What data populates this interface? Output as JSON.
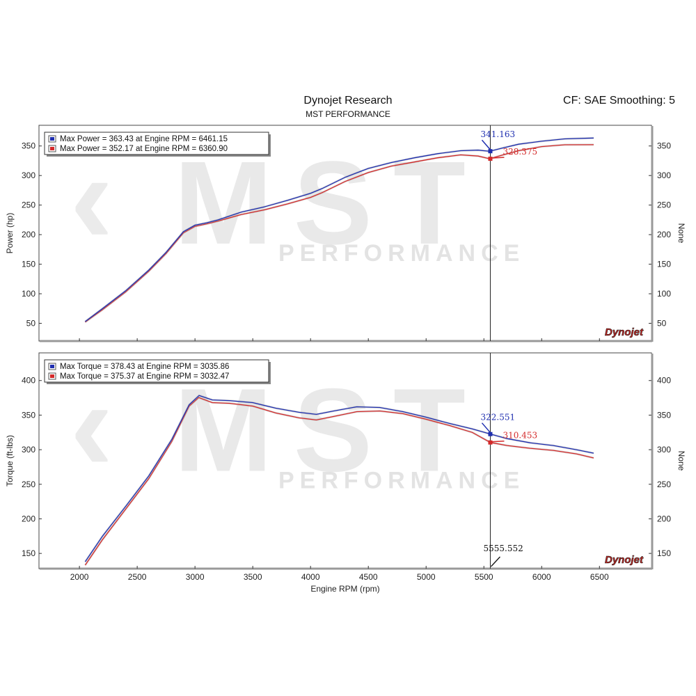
{
  "header": {
    "title": "Dynojet Research",
    "subtitle": "MST PERFORMANCE",
    "cf": "CF: SAE Smoothing: 5"
  },
  "watermark": {
    "brand": "MST",
    "tag": "PERFORMANCE",
    "logo": "Dynojet"
  },
  "colors": {
    "blue": "#1f2fb0",
    "red": "#d42a2a"
  },
  "cursor": {
    "rpm_label": "5555.552",
    "rpm": 5555.552
  },
  "chart_data": [
    {
      "type": "line",
      "ylabel": "Power (hp)",
      "ylabel_right": "None",
      "xlim": [
        1650,
        6950
      ],
      "ylim": [
        20,
        385
      ],
      "yticks": [
        50,
        100,
        150,
        200,
        250,
        300,
        350
      ],
      "yticklabels": [
        "50",
        "100",
        "150",
        "200",
        "250",
        "300",
        "350"
      ],
      "legend": [
        "Max Power = 363.43 at Engine RPM = 6461.15",
        "Max Power = 352.17 at Engine RPM = 6360.90"
      ],
      "cursor_values": [
        "341.163",
        "328.375"
      ],
      "cursor_y": [
        341.163,
        328.375
      ],
      "series": [
        {
          "color": "#1f2fb0",
          "x": [
            2050,
            2200,
            2400,
            2600,
            2750,
            2900,
            3000,
            3100,
            3200,
            3400,
            3600,
            3800,
            4000,
            4100,
            4300,
            4500,
            4700,
            4900,
            5100,
            5300,
            5450,
            5550,
            5650,
            5800,
            6000,
            6200,
            6450
          ],
          "y": [
            53,
            75,
            105,
            140,
            170,
            205,
            216,
            220,
            225,
            238,
            247,
            258,
            270,
            278,
            297,
            312,
            322,
            330,
            337,
            342,
            343,
            341,
            346,
            353,
            358,
            362,
            363.4
          ]
        },
        {
          "color": "#d42a2a",
          "x": [
            2050,
            2200,
            2400,
            2600,
            2750,
            2900,
            3000,
            3100,
            3200,
            3400,
            3600,
            3800,
            4000,
            4100,
            4300,
            4500,
            4700,
            4900,
            5100,
            5300,
            5450,
            5550,
            5650,
            5800,
            6000,
            6200,
            6450
          ],
          "y": [
            52,
            73,
            103,
            138,
            168,
            203,
            214,
            218,
            223,
            234,
            242,
            252,
            263,
            271,
            290,
            305,
            316,
            323,
            330,
            335,
            333,
            328.4,
            334,
            342,
            349,
            352,
            352.2
          ]
        }
      ]
    },
    {
      "type": "line",
      "ylabel": "Torque (ft-lbs)",
      "ylabel_right": "None",
      "xlabel": "Engine RPM (rpm)",
      "xlim": [
        1650,
        6950
      ],
      "ylim": [
        128,
        440
      ],
      "xticks": [
        2000,
        2500,
        3000,
        3500,
        4000,
        4500,
        5000,
        5500,
        6000,
        6500
      ],
      "xticklabels": [
        "2000",
        "2500",
        "3000",
        "3500",
        "4000",
        "4500",
        "5000",
        "5500",
        "6000",
        "6500"
      ],
      "yticks": [
        150,
        200,
        250,
        300,
        350,
        400
      ],
      "yticklabels": [
        "150",
        "200",
        "250",
        "300",
        "350",
        "400"
      ],
      "legend": [
        "Max Torque = 378.43 at Engine RPM = 3035.86",
        "Max Torque = 375.37 at Engine RPM = 3032.47"
      ],
      "cursor_values": [
        "322.551",
        "310.453"
      ],
      "cursor_y": [
        322.551,
        310.453
      ],
      "series": [
        {
          "color": "#1f2fb0",
          "x": [
            2050,
            2200,
            2400,
            2600,
            2800,
            2950,
            3036,
            3150,
            3300,
            3500,
            3700,
            3900,
            4050,
            4200,
            4400,
            4600,
            4800,
            5000,
            5200,
            5400,
            5556,
            5700,
            5900,
            6100,
            6300,
            6450
          ],
          "y": [
            138,
            175,
            218,
            262,
            315,
            365,
            378.4,
            372,
            371,
            368,
            360,
            354,
            351,
            356,
            362,
            361,
            355,
            347,
            338,
            330,
            322.6,
            316,
            310,
            306,
            300,
            295
          ]
        },
        {
          "color": "#d42a2a",
          "x": [
            2050,
            2200,
            2400,
            2600,
            2800,
            2950,
            3032,
            3150,
            3300,
            3500,
            3700,
            3900,
            4050,
            4200,
            4400,
            4600,
            4800,
            5000,
            5200,
            5400,
            5556,
            5700,
            5900,
            6100,
            6300,
            6450
          ],
          "y": [
            133,
            170,
            214,
            258,
            312,
            363,
            375.4,
            368,
            367,
            363,
            353,
            346,
            343,
            348,
            355,
            356,
            352,
            344,
            335,
            325,
            310.5,
            306,
            302,
            299,
            294,
            288
          ]
        }
      ]
    }
  ]
}
